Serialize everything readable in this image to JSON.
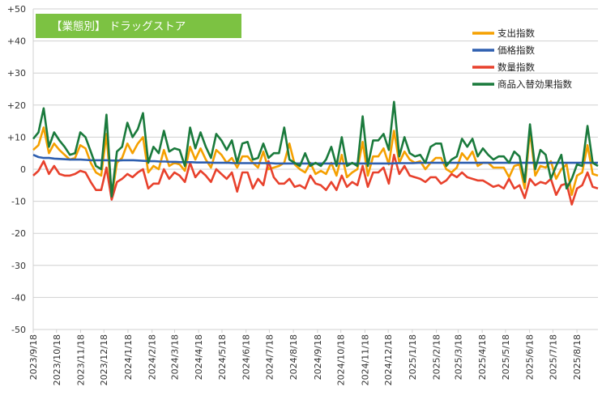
{
  "chart_data": {
    "type": "line",
    "title": "【業態別】 ドラッグストア",
    "title_bg": "#7cc242",
    "ylim": [
      -50,
      50
    ],
    "y_ticks": [
      "+50",
      "+40",
      "+30",
      "+20",
      "+10",
      "0",
      "-10",
      "-20",
      "-30",
      "-40",
      "-50"
    ],
    "y_tick_values": [
      50,
      40,
      30,
      20,
      10,
      0,
      -10,
      -20,
      -30,
      -40,
      -50
    ],
    "x_tick_labels": [
      "2023/9/18",
      "2023/10/18",
      "2023/11/18",
      "2023/12/18",
      "2024/1/18",
      "2024/2/18",
      "2024/3/18",
      "2024/4/18",
      "2024/5/18",
      "2024/6/18",
      "2024/7/18",
      "2024/8/18",
      "2024/9/18",
      "2024/10/18",
      "2024/11/18",
      "2024/12/18",
      "2025/1/18",
      "2025/2/18",
      "2025/3/18",
      "2025/4/18",
      "2025/5/18",
      "2025/6/18",
      "2025/7/18",
      "2025/8/18"
    ],
    "x_start": "2023-09-18",
    "x_end": "2025-09-14",
    "grid": true,
    "legend_position": "top-right",
    "series": [
      {
        "name": "支出指数",
        "color": "#f5a000",
        "values": [
          6,
          7.5,
          13,
          5,
          8,
          6,
          4.5,
          3,
          3.5,
          7.5,
          6.5,
          2,
          -1,
          -2,
          11,
          -9,
          2,
          3.5,
          8,
          5,
          8,
          10,
          -1,
          1,
          0,
          6,
          1,
          2,
          1.5,
          -0.5,
          7,
          3,
          6.5,
          3,
          0.5,
          6,
          4.5,
          2,
          3.5,
          0.5,
          4,
          4,
          2,
          0.5,
          5.5,
          0,
          0.5,
          1,
          2,
          8,
          1.5,
          0,
          -1,
          2,
          -1.5,
          -0.5,
          -1.5,
          2,
          -2,
          4.5,
          -2.5,
          -1,
          0,
          8.5,
          -2,
          4,
          4,
          6.5,
          1.5,
          12,
          2,
          5.5,
          3,
          2,
          2.5,
          0,
          2,
          3.5,
          3.5,
          0,
          -1,
          0.5,
          5,
          3,
          5.5,
          1,
          2,
          2,
          0.5,
          0.5,
          0.5,
          -2.5,
          1,
          1.5,
          -6,
          12,
          -2,
          1,
          0.5,
          2.5,
          -3,
          0,
          1.5,
          -8,
          -2,
          -1,
          7.5,
          -1.5,
          -2
        ]
      },
      {
        "name": "価格指数",
        "color": "#2e5fb0",
        "values": [
          4.5,
          3.8,
          3.5,
          3.5,
          3.3,
          3.2,
          3.1,
          3,
          3,
          3,
          2.9,
          2.8,
          2.8,
          2.8,
          2.8,
          2.7,
          2.7,
          2.8,
          2.8,
          2.8,
          2.7,
          2.6,
          2.5,
          2.5,
          2.4,
          2.4,
          2.3,
          2.3,
          2.2,
          2.2,
          2.2,
          2.1,
          2.1,
          2.1,
          2,
          2,
          2,
          2,
          1.9,
          1.9,
          1.9,
          1.9,
          1.9,
          1.9,
          1.9,
          1.9,
          1.8,
          1.8,
          1.8,
          1.8,
          1.8,
          1.8,
          1.8,
          1.8,
          1.8,
          1.8,
          1.8,
          1.8,
          1.8,
          1.8,
          1.8,
          1.8,
          1.8,
          1.8,
          1.8,
          1.8,
          1.8,
          1.8,
          1.8,
          1.9,
          1.9,
          1.9,
          1.9,
          2,
          2,
          2,
          2,
          2,
          2,
          2,
          2,
          2,
          2,
          2,
          2,
          2,
          2,
          2,
          2,
          2,
          2,
          2,
          2,
          2,
          2,
          2,
          2,
          2,
          2,
          2,
          2,
          2,
          2,
          2,
          2,
          2,
          2,
          2
        ]
      },
      {
        "name": "数量指数",
        "color": "#e8412c",
        "values": [
          -2,
          -0.5,
          2.5,
          -1.5,
          1,
          -1.5,
          -2,
          -2,
          -1.5,
          -0.5,
          -1,
          -4,
          -6.5,
          -6.5,
          0.5,
          -9.5,
          -4,
          -3,
          -1.5,
          -2.5,
          -1,
          0,
          -6,
          -4.5,
          -4.5,
          0,
          -3,
          -1,
          -2,
          -4,
          2,
          -2.5,
          -0.5,
          -2,
          -4,
          0,
          -1.5,
          -3,
          -1,
          -7,
          -1,
          -1,
          -6,
          -3,
          -5,
          2.5,
          -2.5,
          -4.5,
          -4.5,
          -3,
          -5.5,
          -5,
          -6,
          -2,
          -4.5,
          -5,
          -6.5,
          -4,
          -6.5,
          -2,
          -5.5,
          -4,
          -5,
          1,
          -5.5,
          -1,
          -1,
          0.5,
          -4.5,
          4.5,
          -1.5,
          1,
          -2,
          -2.5,
          -3,
          -4,
          -2.5,
          -2.5,
          -4.5,
          -3.5,
          -1.5,
          -2.5,
          -1,
          -2.5,
          -3,
          -3.5,
          -3.5,
          -4.5,
          -5.5,
          -5,
          -6,
          -3,
          -6,
          -5,
          -9,
          -3,
          -5,
          -4,
          -4.5,
          -3,
          -8,
          -5,
          -4.5,
          -11,
          -6,
          -5,
          -1,
          -5.5,
          -6
        ]
      },
      {
        "name": "商品入替効果指数",
        "color": "#1a7a3c",
        "values": [
          9.5,
          11.5,
          19,
          7,
          11.5,
          9,
          7,
          4.5,
          5,
          11.5,
          10,
          5.5,
          1,
          0,
          17,
          -8.5,
          5.5,
          7,
          14.5,
          10,
          12.5,
          17.5,
          2,
          7,
          5,
          12,
          5.5,
          6.5,
          6,
          1,
          13,
          6.5,
          11.5,
          7,
          3.5,
          11,
          9,
          6,
          9,
          2,
          8,
          8.5,
          3,
          3.5,
          8,
          3.5,
          5,
          5,
          13,
          3,
          2,
          1,
          5,
          1,
          2,
          1,
          3,
          7,
          1,
          10,
          1,
          2,
          1,
          16.5,
          1,
          9,
          9,
          11,
          6,
          21,
          4,
          10,
          5,
          4,
          4.5,
          2,
          7,
          8,
          8,
          1,
          3,
          4,
          9.5,
          7,
          9.5,
          4,
          6.5,
          4.5,
          3,
          4,
          4,
          2,
          5.5,
          4,
          -4,
          14,
          0,
          6,
          4.5,
          -3,
          1,
          4.5,
          -6,
          -3,
          1.5,
          1,
          13.5,
          2,
          1
        ]
      }
    ]
  }
}
